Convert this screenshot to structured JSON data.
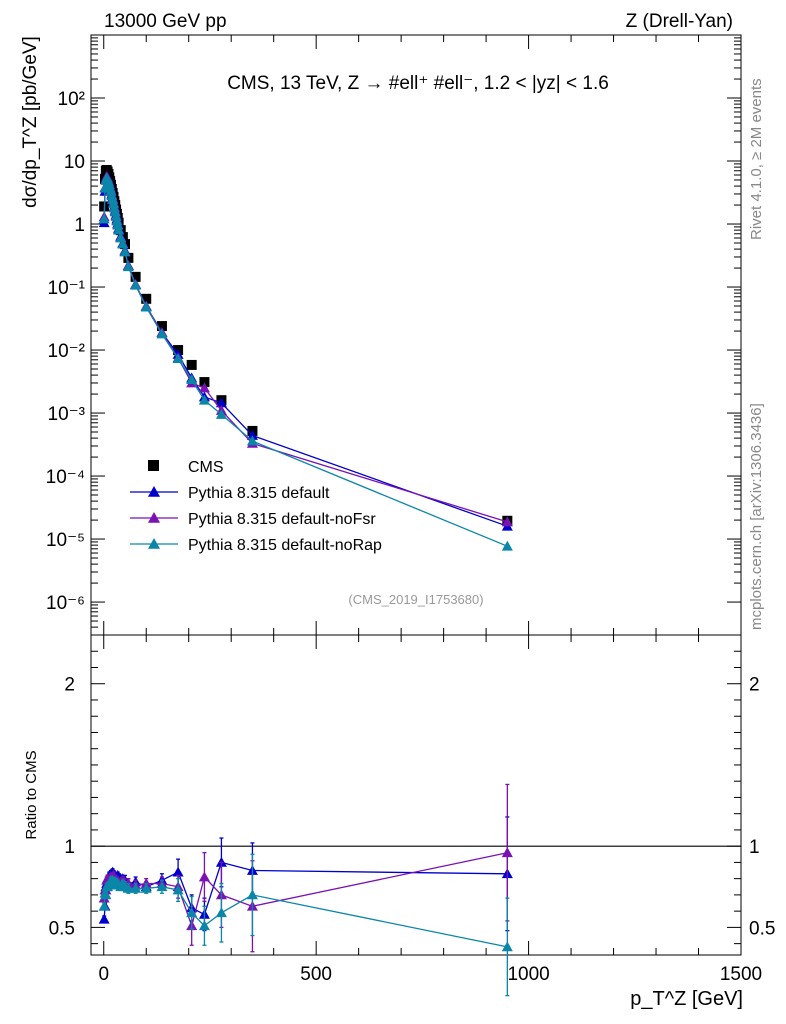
{
  "header": {
    "left": "13000 GeV pp",
    "right": "Z (Drell-Yan)"
  },
  "side_labels": {
    "rivet": "Rivet 4.1.0, ≥ 2M events",
    "mcplots": "mcplots.cern.ch [arXiv:1306.3436]"
  },
  "colors": {
    "cms": "#000000",
    "default": "#0000cc",
    "noFsr": "#7b10b4",
    "noRap": "#0a86a8"
  },
  "chart_data": [
    {
      "type": "scatter",
      "panel": "main",
      "title": "CMS, 13 TeV, Z →  #ell⁺ #ell⁻, 1.2 < |yᴢ| < 1.6",
      "watermark": "(CMS_2019_I1753680)",
      "xlabel": "p_T^Z [GeV]",
      "ylabel": "dσ/dp_T^Z [pb/GeV]",
      "yscale": "log",
      "xlim": [
        -30,
        1500
      ],
      "ylim": [
        3e-07,
        1000
      ],
      "y_ticks": [
        {
          "value": 1e-06,
          "label": "10⁻⁶"
        },
        {
          "value": 1e-05,
          "label": "10⁻⁵"
        },
        {
          "value": 0.0001,
          "label": "10⁻⁴"
        },
        {
          "value": 0.001,
          "label": "10⁻³"
        },
        {
          "value": 0.01,
          "label": "10⁻²"
        },
        {
          "value": 0.1,
          "label": "10⁻¹"
        },
        {
          "value": 1,
          "label": "1"
        },
        {
          "value": 10,
          "label": "10"
        },
        {
          "value": 100,
          "label": "10²"
        }
      ],
      "x": [
        1,
        3,
        5,
        7,
        9,
        11,
        13,
        15,
        17,
        19,
        21,
        23,
        25,
        27,
        29,
        31,
        33,
        35,
        40,
        45,
        50,
        58,
        75,
        100,
        137,
        175,
        207,
        237,
        277,
        350,
        950
      ],
      "series": [
        {
          "name": "CMS",
          "key": "cms",
          "marker": "square",
          "line": false,
          "values": [
            1.9,
            5.2,
            7.0,
            7.2,
            6.8,
            6.2,
            5.5,
            4.8,
            4.2,
            3.6,
            3.1,
            2.7,
            2.3,
            2.0,
            1.7,
            1.45,
            1.25,
            1.05,
            0.8,
            0.62,
            0.48,
            0.29,
            0.145,
            0.065,
            0.024,
            0.01,
            0.0058,
            0.0031,
            0.0016,
            0.00052,
            1.95e-05
          ]
        },
        {
          "name": "Pythia 8.315 default",
          "key": "default",
          "marker": "triangle",
          "line": true,
          "values": [
            1.05,
            3.3,
            5.3,
            5.6,
            5.5,
            5.0,
            4.5,
            3.9,
            3.5,
            3.0,
            2.6,
            2.25,
            1.9,
            1.65,
            1.4,
            1.2,
            1.02,
            0.85,
            0.64,
            0.5,
            0.38,
            0.22,
            0.11,
            0.049,
            0.019,
            0.0085,
            0.0036,
            0.0018,
            0.00145,
            0.00044,
            1.6e-05
          ]
        },
        {
          "name": "Pythia 8.315 default-noFsr",
          "key": "noFsr",
          "marker": "triangle",
          "line": true,
          "values": [
            1.3,
            3.8,
            5.1,
            5.7,
            5.4,
            4.8,
            4.3,
            3.8,
            3.4,
            2.9,
            2.5,
            2.2,
            1.85,
            1.6,
            1.35,
            1.15,
            0.98,
            0.82,
            0.62,
            0.49,
            0.37,
            0.22,
            0.11,
            0.05,
            0.019,
            0.0075,
            0.003,
            0.0025,
            0.0011,
            0.00033,
            1.87e-05
          ]
        },
        {
          "name": "Pythia 8.315 default-noRap",
          "key": "noRap",
          "marker": "triangle",
          "line": true,
          "values": [
            1.2,
            3.7,
            4.9,
            5.4,
            5.1,
            4.7,
            4.2,
            3.7,
            3.3,
            2.8,
            2.45,
            2.1,
            1.8,
            1.55,
            1.32,
            1.12,
            0.96,
            0.8,
            0.6,
            0.48,
            0.36,
            0.21,
            0.107,
            0.048,
            0.018,
            0.0073,
            0.0034,
            0.0016,
            0.00095,
            0.00036,
            7.7e-06
          ]
        }
      ]
    },
    {
      "type": "line",
      "panel": "ratio",
      "ylabel": "Ratio to CMS",
      "xlabel": "p_T^Z [GeV]",
      "xlim": [
        -30,
        1500
      ],
      "ylim": [
        0.33,
        2.3
      ],
      "y_ticks": [
        {
          "value": 0.5,
          "label": "0.5"
        },
        {
          "value": 1,
          "label": "1"
        },
        {
          "value": 2,
          "label": "2"
        }
      ],
      "x_ticks": [
        {
          "value": 0,
          "label": "0"
        },
        {
          "value": 500,
          "label": "500"
        },
        {
          "value": 1000,
          "label": "1000"
        },
        {
          "value": 1500,
          "label": "1500"
        }
      ],
      "reference_line": 1,
      "x": [
        1,
        3,
        5,
        7,
        9,
        11,
        13,
        15,
        17,
        19,
        21,
        23,
        25,
        27,
        29,
        31,
        33,
        35,
        40,
        45,
        50,
        58,
        75,
        100,
        137,
        175,
        207,
        237,
        277,
        350,
        950
      ],
      "series": [
        {
          "name": "Pythia 8.315 default",
          "key": "default",
          "values": [
            0.55,
            0.63,
            0.75,
            0.77,
            0.8,
            0.8,
            0.82,
            0.81,
            0.83,
            0.83,
            0.84,
            0.83,
            0.82,
            0.82,
            0.81,
            0.81,
            0.82,
            0.81,
            0.8,
            0.8,
            0.79,
            0.77,
            0.78,
            0.75,
            0.79,
            0.84,
            0.62,
            0.58,
            0.9,
            0.85,
            0.83
          ],
          "errors": [
            0.02,
            0.02,
            0.02,
            0.02,
            0.02,
            0.02,
            0.02,
            0.02,
            0.02,
            0.02,
            0.02,
            0.02,
            0.02,
            0.02,
            0.02,
            0.02,
            0.02,
            0.02,
            0.02,
            0.02,
            0.03,
            0.03,
            0.03,
            0.03,
            0.04,
            0.08,
            0.08,
            0.1,
            0.15,
            0.17,
            0.35
          ]
        },
        {
          "name": "Pythia 8.315 default-noFsr",
          "key": "noFsr",
          "values": [
            0.68,
            0.73,
            0.73,
            0.79,
            0.8,
            0.77,
            0.78,
            0.79,
            0.81,
            0.81,
            0.81,
            0.82,
            0.8,
            0.8,
            0.79,
            0.79,
            0.78,
            0.78,
            0.78,
            0.79,
            0.77,
            0.77,
            0.76,
            0.77,
            0.77,
            0.75,
            0.51,
            0.81,
            0.7,
            0.63,
            0.96
          ],
          "errors": [
            0.02,
            0.02,
            0.02,
            0.02,
            0.02,
            0.02,
            0.02,
            0.02,
            0.02,
            0.02,
            0.02,
            0.02,
            0.02,
            0.02,
            0.02,
            0.02,
            0.02,
            0.02,
            0.02,
            0.02,
            0.03,
            0.03,
            0.03,
            0.03,
            0.04,
            0.07,
            0.12,
            0.15,
            0.2,
            0.28,
            0.42
          ]
        },
        {
          "name": "Pythia 8.315 default-noRap",
          "key": "noRap",
          "values": [
            0.63,
            0.71,
            0.7,
            0.75,
            0.75,
            0.76,
            0.76,
            0.77,
            0.79,
            0.78,
            0.79,
            0.78,
            0.78,
            0.78,
            0.78,
            0.77,
            0.77,
            0.76,
            0.75,
            0.77,
            0.75,
            0.74,
            0.74,
            0.74,
            0.75,
            0.73,
            0.59,
            0.51,
            0.59,
            0.7,
            0.38
          ],
          "errors": [
            0.02,
            0.02,
            0.02,
            0.02,
            0.02,
            0.02,
            0.02,
            0.02,
            0.02,
            0.02,
            0.02,
            0.02,
            0.02,
            0.02,
            0.02,
            0.02,
            0.02,
            0.02,
            0.02,
            0.02,
            0.03,
            0.03,
            0.03,
            0.03,
            0.04,
            0.07,
            0.1,
            0.12,
            0.18,
            0.25,
            0.3
          ]
        }
      ]
    }
  ],
  "legend": {
    "position": "lower-left",
    "entries": [
      {
        "label": "CMS",
        "key": "cms",
        "marker": "square"
      },
      {
        "label": "Pythia 8.315 default",
        "key": "default",
        "marker": "triangle"
      },
      {
        "label": "Pythia 8.315 default-noFsr",
        "key": "noFsr",
        "marker": "triangle"
      },
      {
        "label": "Pythia 8.315 default-noRap",
        "key": "noRap",
        "marker": "triangle"
      }
    ]
  }
}
